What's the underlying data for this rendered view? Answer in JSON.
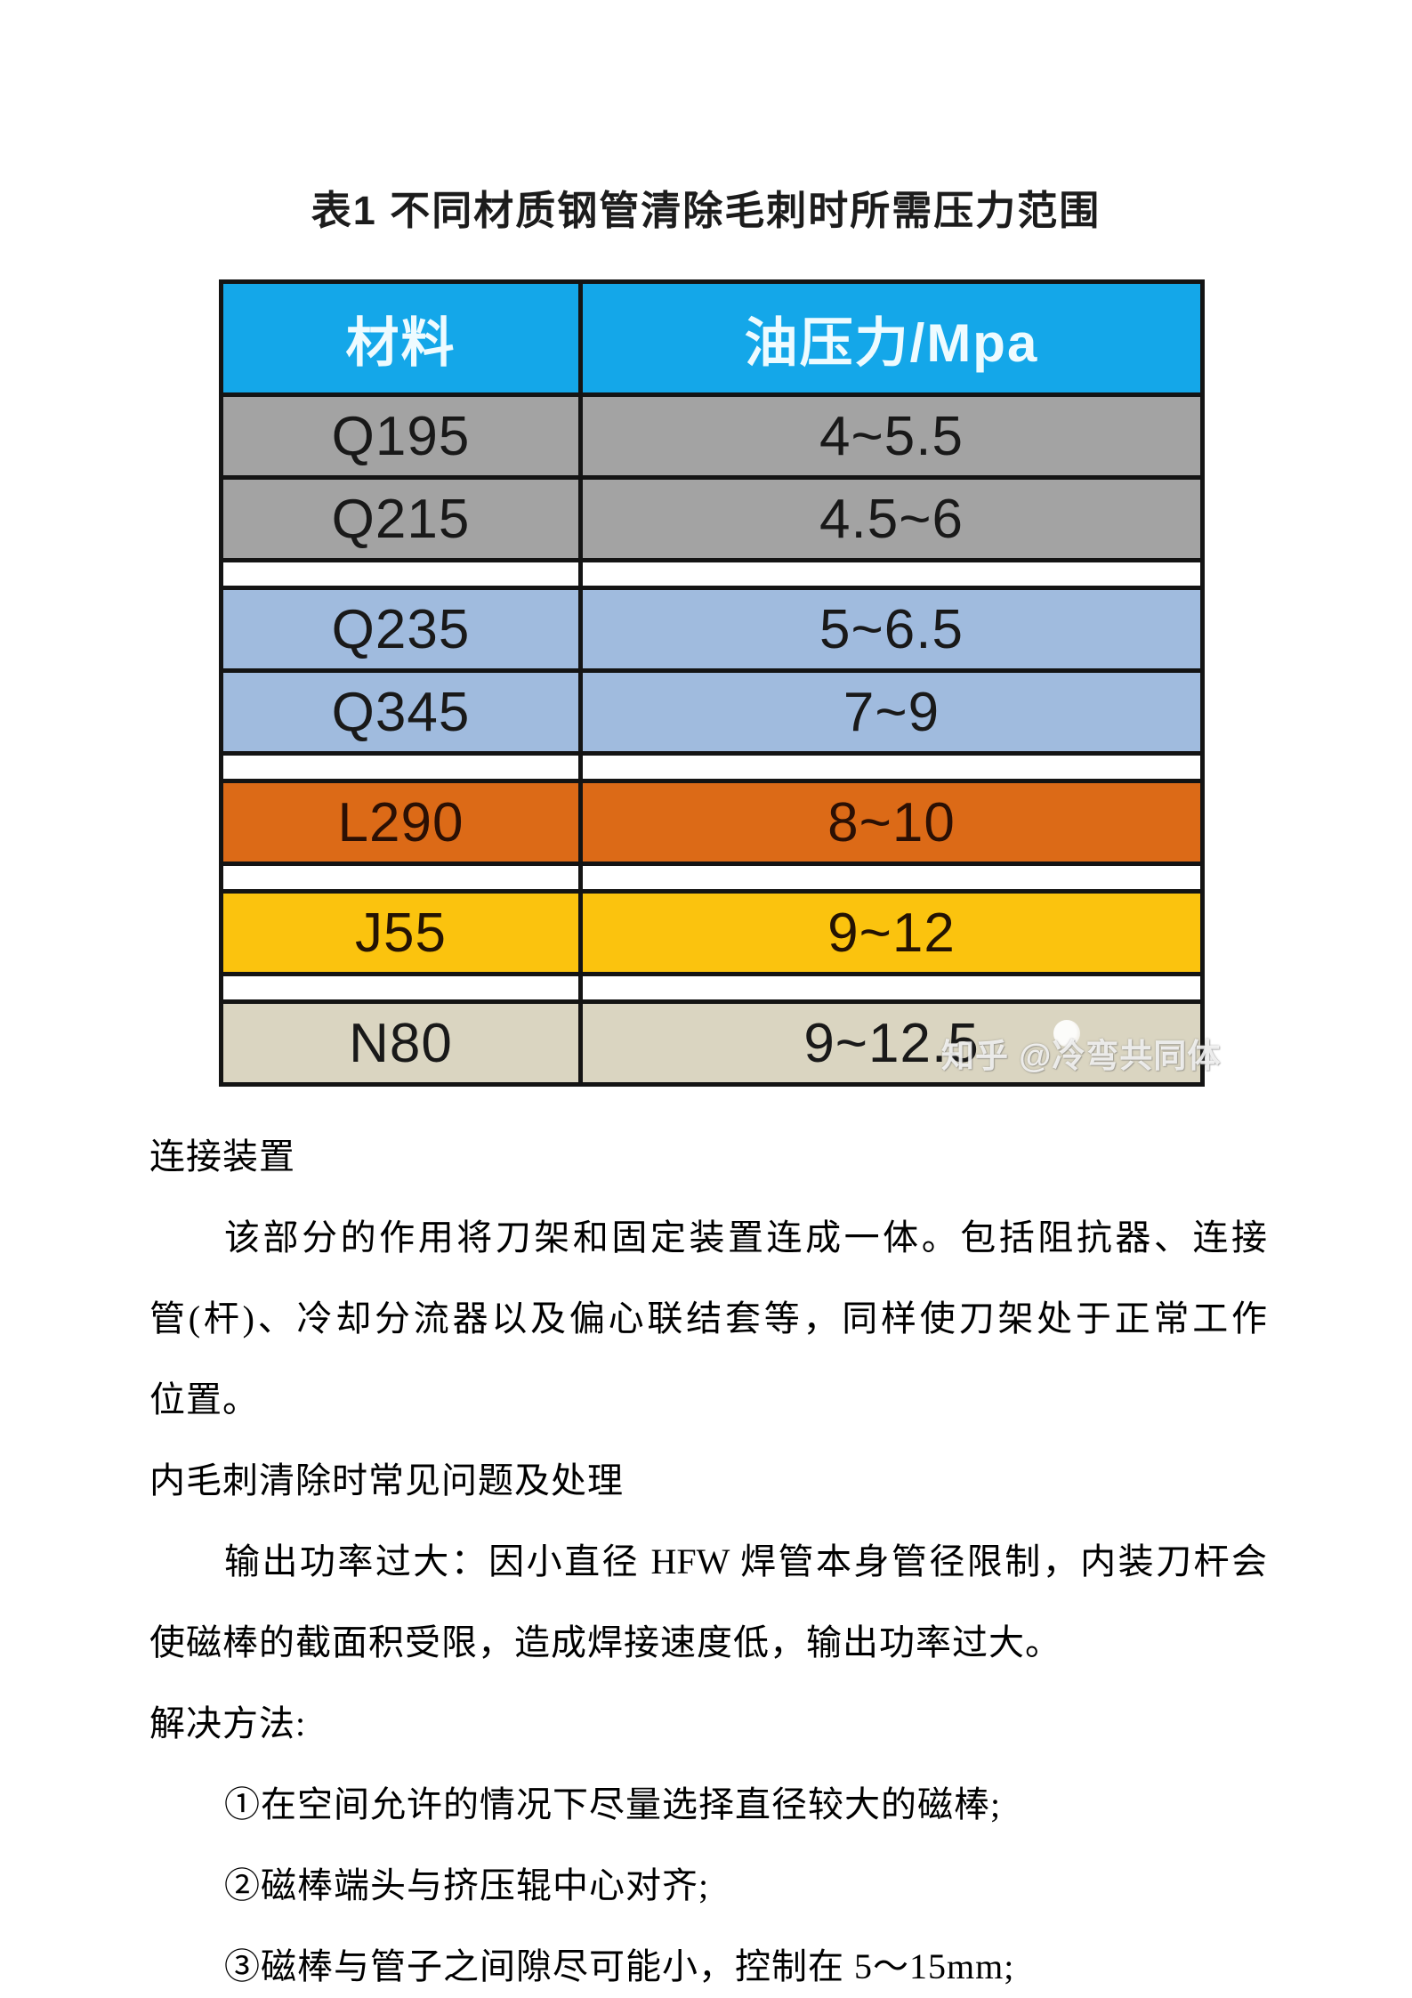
{
  "title": "表1 不同材质钢管清除毛刺时所需压力范围",
  "table": {
    "headers": [
      "材料",
      "油压力/Mpa"
    ],
    "rows": [
      {
        "material": "Q195",
        "pressure": "4~5.5",
        "group": "gray"
      },
      {
        "material": "Q215",
        "pressure": "4.5~6",
        "group": "gray"
      },
      {
        "material": "Q235",
        "pressure": "5~6.5",
        "group": "blue"
      },
      {
        "material": "Q345",
        "pressure": "7~9",
        "group": "blue"
      },
      {
        "material": "L290",
        "pressure": "8~10",
        "group": "orange"
      },
      {
        "material": "J55",
        "pressure": "9~12",
        "group": "yellow"
      },
      {
        "material": "N80",
        "pressure": "9~12.5",
        "group": "beige"
      }
    ],
    "colors": {
      "header_bg": "#14A7E9",
      "header_text": "#EEFBFF",
      "group_gray": "#A3A3A3",
      "group_blue": "#A0BBDE",
      "group_orange": "#DC6A17",
      "group_yellow": "#FBC30E",
      "group_beige": "#DAD5C1",
      "border": "#141414"
    }
  },
  "watermark": {
    "text": "知乎 @冷弯共同体"
  },
  "body": {
    "lines": [
      {
        "text": "连接装置"
      },
      {
        "text": "该部分的作用将刀架和固定装置连成一体。包括阻抗器、连接"
      },
      {
        "text": "管(杆)、冷却分流器以及偏心联结套等，同样使刀架处于正常工作"
      },
      {
        "text": "位置。"
      },
      {
        "text": "内毛刺清除时常见问题及处理"
      },
      {
        "text": "输出功率过大：因小直径 HFW 焊管本身管径限制，内装刀杆会"
      },
      {
        "text": "使磁棒的截面积受限，造成焊接速度低，输出功率过大。"
      },
      {
        "text": "解决方法:"
      },
      {
        "text": "①在空间允许的情况下尽量选择直径较大的磁棒;"
      },
      {
        "text": "②磁棒端头与挤压辊中心对齐;"
      },
      {
        "text": "③磁棒与管子之间隙尽可能小，控制在 5～15mm;"
      }
    ]
  }
}
